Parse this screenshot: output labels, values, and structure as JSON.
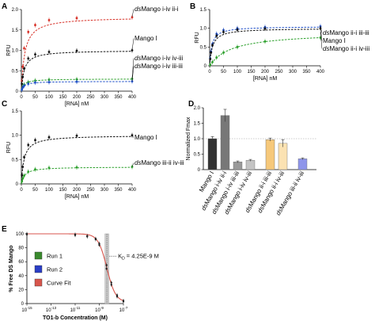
{
  "chart_data": [
    {
      "panel": "A",
      "type": "line",
      "xlabel": "[RNA] nM",
      "ylabel": "RFU",
      "xlim": [
        0,
        400
      ],
      "ylim": [
        0,
        2
      ],
      "x_ticks": [
        0,
        50,
        100,
        150,
        200,
        250,
        300,
        350,
        400
      ],
      "y_ticks": [
        0,
        0.5,
        1.0,
        1.5,
        2.0
      ],
      "series": [
        {
          "name": "dsMango i-iv ii-i",
          "name_ds": "ds",
          "name_rest": "Mango i-iv ii-i",
          "color": "#d73027",
          "fmax": 1.82,
          "kd": 12,
          "x": [
            2,
            5,
            10,
            25,
            50,
            100,
            200,
            400
          ],
          "y": [
            0.25,
            0.6,
            1.05,
            1.45,
            1.62,
            1.74,
            1.79,
            1.81
          ]
        },
        {
          "name": "Mango I",
          "name_ds": "",
          "name_rest": "Mango I",
          "color": "#111111",
          "fmax": 1.0,
          "kd": 10,
          "x": [
            2,
            5,
            10,
            25,
            50,
            100,
            200,
            400
          ],
          "y": [
            0.18,
            0.35,
            0.55,
            0.8,
            0.9,
            0.96,
            0.99,
            1.0
          ]
        },
        {
          "name": "dsMango i-iv iv-iii",
          "name_ds": "ds",
          "name_rest": "Mango i-iv iv-iii",
          "color": "#2ca02c",
          "fmax": 0.3,
          "kd": 9,
          "x": [
            2,
            5,
            10,
            25,
            50,
            100,
            200,
            400
          ],
          "y": [
            0.05,
            0.11,
            0.16,
            0.22,
            0.26,
            0.28,
            0.29,
            0.3
          ]
        },
        {
          "name": "dsMango i-iv iii-iii",
          "name_ds": "ds",
          "name_rest": "Mango i-iv iii-iii",
          "color": "#2050c8",
          "fmax": 0.24,
          "kd": 9,
          "x": [
            2,
            5,
            10,
            25,
            50,
            100,
            200,
            400
          ],
          "y": [
            0.04,
            0.09,
            0.13,
            0.18,
            0.21,
            0.22,
            0.23,
            0.24
          ]
        }
      ]
    },
    {
      "panel": "B",
      "type": "line",
      "xlabel": "[RNA] nM",
      "ylabel": "RFU",
      "xlim": [
        0,
        400
      ],
      "ylim": [
        0,
        1.5
      ],
      "x_ticks": [
        0,
        50,
        100,
        150,
        200,
        250,
        300,
        350,
        400
      ],
      "y_ticks": [
        0,
        0.5,
        1.0,
        1.5
      ],
      "series": [
        {
          "name": "dsMango ii-i iii-iii",
          "name_ds": "ds",
          "name_rest": "Mango ii-i iii-iii",
          "color": "#2050c8",
          "fmax": 1.05,
          "kd": 8,
          "x": [
            2,
            5,
            10,
            25,
            50,
            100,
            200,
            400
          ],
          "y": [
            0.2,
            0.38,
            0.58,
            0.85,
            0.95,
            1.0,
            1.03,
            1.05
          ]
        },
        {
          "name": "Mango I",
          "name_ds": "",
          "name_rest": "Mango I",
          "color": "#111111",
          "fmax": 1.0,
          "kd": 10,
          "x": [
            2,
            5,
            10,
            25,
            50,
            100,
            200,
            400
          ],
          "y": [
            0.18,
            0.35,
            0.55,
            0.8,
            0.9,
            0.96,
            0.99,
            1.0
          ]
        },
        {
          "name": "dsMango ii-i iv-iii",
          "name_ds": "ds",
          "name_rest": "Mango ii-i iv-iii",
          "color": "#2ca02c",
          "fmax": 0.9,
          "kd": 80,
          "x": [
            2,
            10,
            25,
            50,
            100,
            200,
            400
          ],
          "y": [
            0.03,
            0.1,
            0.22,
            0.35,
            0.5,
            0.65,
            0.75
          ]
        }
      ]
    },
    {
      "panel": "C",
      "type": "line",
      "xlabel": "[RNA] nM",
      "ylabel": "RFU",
      "xlim": [
        0,
        400
      ],
      "ylim": [
        0,
        1.5
      ],
      "x_ticks": [
        0,
        50,
        100,
        150,
        200,
        250,
        300,
        350,
        400
      ],
      "y_ticks": [
        0,
        0.5,
        1.0,
        1.5
      ],
      "series": [
        {
          "name": "Mango I",
          "name_ds": "",
          "name_rest": "Mango I",
          "color": "#111111",
          "fmax": 1.0,
          "kd": 10,
          "x": [
            2,
            5,
            10,
            25,
            50,
            100,
            200,
            400
          ],
          "y": [
            0.18,
            0.35,
            0.55,
            0.8,
            0.9,
            0.96,
            0.99,
            1.0
          ]
        },
        {
          "name": "dsMango iii-ii iv-iii",
          "name_ds": "ds",
          "name_rest": "Mango iii-ii iv-iii",
          "color": "#2ca02c",
          "fmax": 0.35,
          "kd": 12,
          "x": [
            2,
            5,
            10,
            25,
            50,
            100,
            200,
            400
          ],
          "y": [
            0.05,
            0.11,
            0.17,
            0.25,
            0.3,
            0.33,
            0.34,
            0.35
          ]
        }
      ]
    },
    {
      "panel": "D",
      "type": "bar",
      "ylabel": "Normalized Fmax",
      "ylim": [
        0,
        2.0
      ],
      "y_ticks": [
        0,
        0.5,
        1.0,
        1.5,
        2.0
      ],
      "reference_line": 1.0,
      "categories": [
        {
          "ds": "",
          "rest": "Mango I"
        },
        {
          "ds": "ds",
          "rest": "Mango i-iv ii-i"
        },
        {
          "ds": "ds",
          "rest": "Mango i-iv iii-iii"
        },
        {
          "ds": "ds",
          "rest": "Mango i-iv iv-iii"
        },
        {
          "ds": "ds",
          "rest": "Mango ii-i iii-iii"
        },
        {
          "ds": "ds",
          "rest": "Mango ii-i iv-iii"
        },
        {
          "ds": "ds",
          "rest": "Mango iii-ii iv-iii"
        }
      ],
      "groups": [
        0,
        0,
        0,
        0,
        1,
        1,
        2
      ],
      "values": [
        1.0,
        1.75,
        0.25,
        0.3,
        0.97,
        0.85,
        0.35
      ],
      "errors": [
        0.07,
        0.2,
        0.03,
        0.03,
        0.05,
        0.12,
        0.03
      ],
      "colors": [
        "#333333",
        "#777777",
        "#999999",
        "#c4c4c4",
        "#f6c87a",
        "#fbe2b2",
        "#8e95ea"
      ]
    },
    {
      "panel": "E",
      "type": "line",
      "xlabel": "TO1-b Concentration (M)",
      "ylabel": "% Free DS Mango",
      "x_scale": "log",
      "xlim": [
        1e-15,
        1e-07
      ],
      "ylim": [
        0,
        100
      ],
      "x_tick_labels": [
        {
          "base": "10",
          "exp": "-15",
          "value": 1e-15
        },
        {
          "base": "10",
          "exp": "-13",
          "value": 1e-13
        },
        {
          "base": "10",
          "exp": "-11",
          "value": 1e-11
        },
        {
          "base": "10",
          "exp": "-9",
          "value": 1e-09
        },
        {
          "base": "10",
          "exp": "-7",
          "value": 1e-07
        }
      ],
      "y_ticks": [
        0,
        20,
        40,
        60,
        80,
        100
      ],
      "ic50": 4.25e-09,
      "kd_label": "K",
      "kd_sub": "D",
      "kd_value": " = 4.25E-9 M",
      "legend": [
        {
          "label": "Run 1",
          "color": "#3a8a2e"
        },
        {
          "label": "Run 2",
          "color": "#2a3ec6"
        },
        {
          "label": "Curve Fit",
          "color": "#d8554c"
        }
      ],
      "series": [
        {
          "name": "Run 1",
          "color": "#3a8a2e",
          "x": [
            1e-15,
            1e-11,
            1e-10,
            5e-10,
            1e-09,
            4e-09,
            1e-08,
            3e-08,
            1e-07
          ],
          "y": [
            100,
            99,
            97,
            93,
            86,
            55,
            30,
            12,
            4
          ]
        },
        {
          "name": "Run 2",
          "color": "#2a3ec6",
          "x": [
            1e-15,
            1e-11,
            1e-10,
            5e-10,
            1e-09,
            4e-09,
            1e-08,
            3e-08,
            1e-07
          ],
          "y": [
            99,
            98,
            96,
            92,
            84,
            50,
            27,
            10,
            3
          ]
        },
        {
          "name": "Curve Fit",
          "color": "#d8554c",
          "top": 100,
          "bottom": 2,
          "hill": 1.2
        }
      ]
    }
  ]
}
